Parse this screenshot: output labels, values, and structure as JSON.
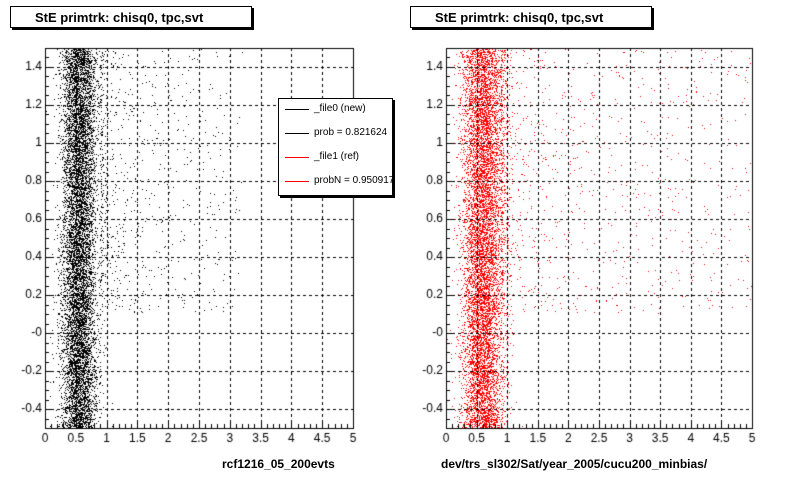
{
  "panels": [
    {
      "title": "StE primtrk: chisq0, tpc,svt",
      "caption": "rcf1216_05_200evts",
      "color": "#000000"
    },
    {
      "title": "StE primtrk: chisq0, tpc,svt",
      "caption": "dev/trs_sl302/Sat/year_2005/cucu200_minbias/",
      "color": "#ff0000"
    }
  ],
  "legend": {
    "entries": [
      {
        "label": "_file0 (new)",
        "color": "#000000"
      },
      {
        "label": "prob = 0.821624",
        "color": "#000000"
      },
      {
        "label": "_file1 (ref)",
        "color": "#ff0000"
      },
      {
        "label": "probN = 0.950917",
        "color": "#ff0000"
      }
    ]
  },
  "footer": "",
  "chart_data": [
    {
      "type": "scatter",
      "title": "StE primtrk: chisq0, tpc,svt",
      "xlabel": "rcf1216_05_200evts",
      "ylabel": "",
      "xlim": [
        0,
        5
      ],
      "ylim": [
        -0.5,
        1.5
      ],
      "x_ticks": [
        "0",
        "0.5",
        "1",
        "1.5",
        "2",
        "2.5",
        "3",
        "3.5",
        "4",
        "4.5",
        "5"
      ],
      "y_ticks": [
        "-0.4",
        "-0.2",
        "-0",
        "0.2",
        "0.4",
        "0.6",
        "0.8",
        "1",
        "1.2",
        "1.4"
      ],
      "grid": true,
      "series": [
        {
          "name": "_file0 (new)",
          "color": "#000000",
          "density": "dense band x 0.3-0.9 centered ~0.55, sparse tail to x ~3",
          "points_sample": [
            [
              0.35,
              0.1
            ],
            [
              0.45,
              0.6
            ],
            [
              0.55,
              1.2
            ],
            [
              0.6,
              -0.3
            ],
            [
              0.7,
              0.9
            ],
            [
              0.8,
              0.3
            ],
            [
              1.0,
              0.7
            ],
            [
              1.3,
              1.1
            ],
            [
              1.7,
              0.65
            ],
            [
              2.3,
              1.35
            ],
            [
              2.9,
              0.55
            ]
          ]
        }
      ],
      "legend_position": "top-right"
    },
    {
      "type": "scatter",
      "title": "StE primtrk: chisq0, tpc,svt",
      "xlabel": "dev/trs_sl302/Sat/year_2005/cucu200_minbias/",
      "ylabel": "",
      "xlim": [
        0,
        5
      ],
      "ylim": [
        -0.5,
        1.5
      ],
      "x_ticks": [
        "0",
        "0.5",
        "1",
        "1.5",
        "2",
        "2.5",
        "3",
        "3.5",
        "4",
        "4.5",
        "5"
      ],
      "y_ticks": [
        "-0.4",
        "-0.2",
        "-0",
        "0.2",
        "0.4",
        "0.6",
        "0.8",
        "1",
        "1.2",
        "1.4"
      ],
      "grid": true,
      "series": [
        {
          "color": "#ff0000",
          "density": "dense band x 0.2-1.0 centered ~0.6, sparse tail to x ~5",
          "points_sample": [
            [
              0.3,
              0.2
            ],
            [
              0.5,
              0.7
            ],
            [
              0.6,
              1.3
            ],
            [
              0.65,
              -0.2
            ],
            [
              0.8,
              1.0
            ],
            [
              0.9,
              0.4
            ],
            [
              1.2,
              0.8
            ],
            [
              1.8,
              1.2
            ],
            [
              2.5,
              0.6
            ],
            [
              3.5,
              1.4
            ],
            [
              4.6,
              0.7
            ]
          ]
        }
      ]
    }
  ]
}
